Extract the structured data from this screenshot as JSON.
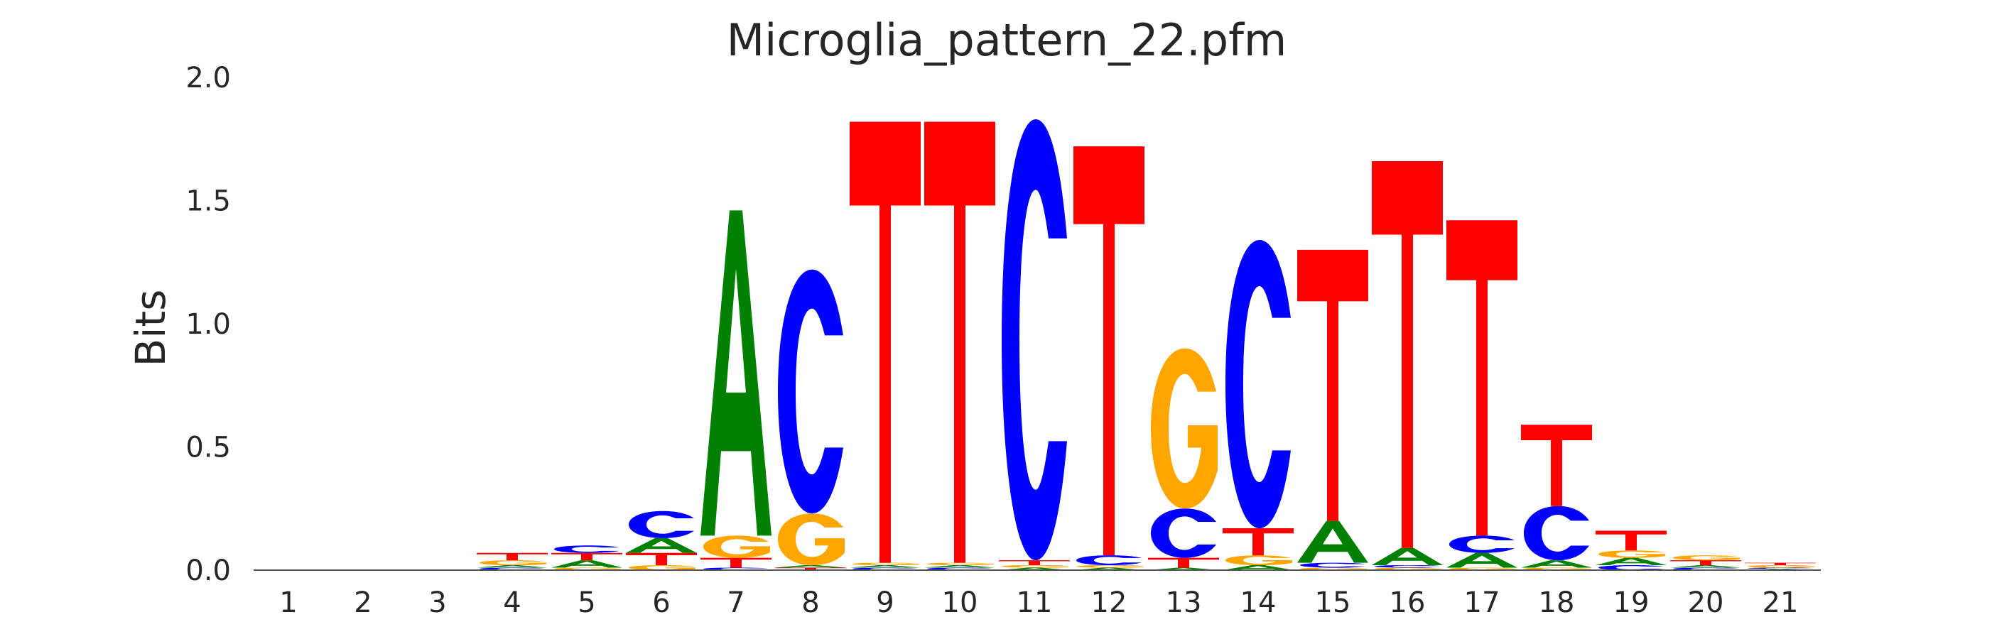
{
  "chart_data": {
    "type": "sequence-logo",
    "title": "Microglia_pattern_22.pfm",
    "xlabel": "",
    "ylabel": "Bits",
    "ylim": [
      0,
      2.0
    ],
    "yticks": [
      0.0,
      0.5,
      1.0,
      1.5,
      2.0
    ],
    "ytick_labels": [
      "0.0",
      "0.5",
      "1.0",
      "1.5",
      "2.0"
    ],
    "grid": false,
    "colors": {
      "A": "#008000",
      "C": "#0000ff",
      "G": "#ffa500",
      "T": "#ff0000"
    },
    "positions": [
      {
        "label": "1",
        "stack": []
      },
      {
        "label": "2",
        "stack": []
      },
      {
        "label": "3",
        "stack": []
      },
      {
        "label": "4",
        "stack": [
          [
            "C",
            0.01
          ],
          [
            "A",
            0.01
          ],
          [
            "G",
            0.02
          ],
          [
            "T",
            0.03
          ]
        ]
      },
      {
        "label": "5",
        "stack": [
          [
            "G",
            0.01
          ],
          [
            "A",
            0.03
          ],
          [
            "T",
            0.03
          ],
          [
            "C",
            0.03
          ]
        ]
      },
      {
        "label": "6",
        "stack": [
          [
            "G",
            0.02
          ],
          [
            "T",
            0.05
          ],
          [
            "A",
            0.06
          ],
          [
            "C",
            0.11
          ]
        ]
      },
      {
        "label": "7",
        "stack": [
          [
            "C",
            0.01
          ],
          [
            "T",
            0.04
          ],
          [
            "G",
            0.09
          ],
          [
            "A",
            1.32
          ]
        ]
      },
      {
        "label": "8",
        "stack": [
          [
            "T",
            0.01
          ],
          [
            "A",
            0.01
          ],
          [
            "G",
            0.21
          ],
          [
            "C",
            0.99
          ]
        ]
      },
      {
        "label": "9",
        "stack": [
          [
            "C",
            0.01
          ],
          [
            "A",
            0.01
          ],
          [
            "G",
            0.01
          ],
          [
            "T",
            1.79
          ]
        ]
      },
      {
        "label": "10",
        "stack": [
          [
            "C",
            0.01
          ],
          [
            "A",
            0.01
          ],
          [
            "G",
            0.01
          ],
          [
            "T",
            1.79
          ]
        ]
      },
      {
        "label": "11",
        "stack": [
          [
            "A",
            0.01
          ],
          [
            "G",
            0.01
          ],
          [
            "T",
            0.02
          ],
          [
            "C",
            1.79
          ]
        ]
      },
      {
        "label": "12",
        "stack": [
          [
            "A",
            0.01
          ],
          [
            "G",
            0.01
          ],
          [
            "C",
            0.04
          ],
          [
            "T",
            1.66
          ]
        ]
      },
      {
        "label": "13",
        "stack": [
          [
            "A",
            0.01
          ],
          [
            "T",
            0.04
          ],
          [
            "C",
            0.2
          ],
          [
            "G",
            0.65
          ]
        ]
      },
      {
        "label": "14",
        "stack": [
          [
            "A",
            0.02
          ],
          [
            "G",
            0.04
          ],
          [
            "T",
            0.11
          ],
          [
            "C",
            1.17
          ]
        ]
      },
      {
        "label": "15",
        "stack": [
          [
            "G",
            0.01
          ],
          [
            "C",
            0.02
          ],
          [
            "A",
            0.17
          ],
          [
            "T",
            1.1
          ]
        ]
      },
      {
        "label": "16",
        "stack": [
          [
            "G",
            0.01
          ],
          [
            "C",
            0.01
          ],
          [
            "A",
            0.07
          ],
          [
            "T",
            1.57
          ]
        ]
      },
      {
        "label": "17",
        "stack": [
          [
            "G",
            0.01
          ],
          [
            "A",
            0.06
          ],
          [
            "C",
            0.07
          ],
          [
            "T",
            1.28
          ]
        ]
      },
      {
        "label": "18",
        "stack": [
          [
            "G",
            0.01
          ],
          [
            "A",
            0.03
          ],
          [
            "C",
            0.22
          ],
          [
            "T",
            0.33
          ]
        ]
      },
      {
        "label": "19",
        "stack": [
          [
            "C",
            0.02
          ],
          [
            "A",
            0.03
          ],
          [
            "G",
            0.03
          ],
          [
            "T",
            0.08
          ]
        ]
      },
      {
        "label": "20",
        "stack": [
          [
            "C",
            0.01
          ],
          [
            "A",
            0.01
          ],
          [
            "T",
            0.02
          ],
          [
            "G",
            0.02
          ]
        ]
      },
      {
        "label": "21",
        "stack": [
          [
            "A",
            0.005
          ],
          [
            "C",
            0.005
          ],
          [
            "G",
            0.01
          ],
          [
            "T",
            0.01
          ]
        ]
      }
    ]
  }
}
